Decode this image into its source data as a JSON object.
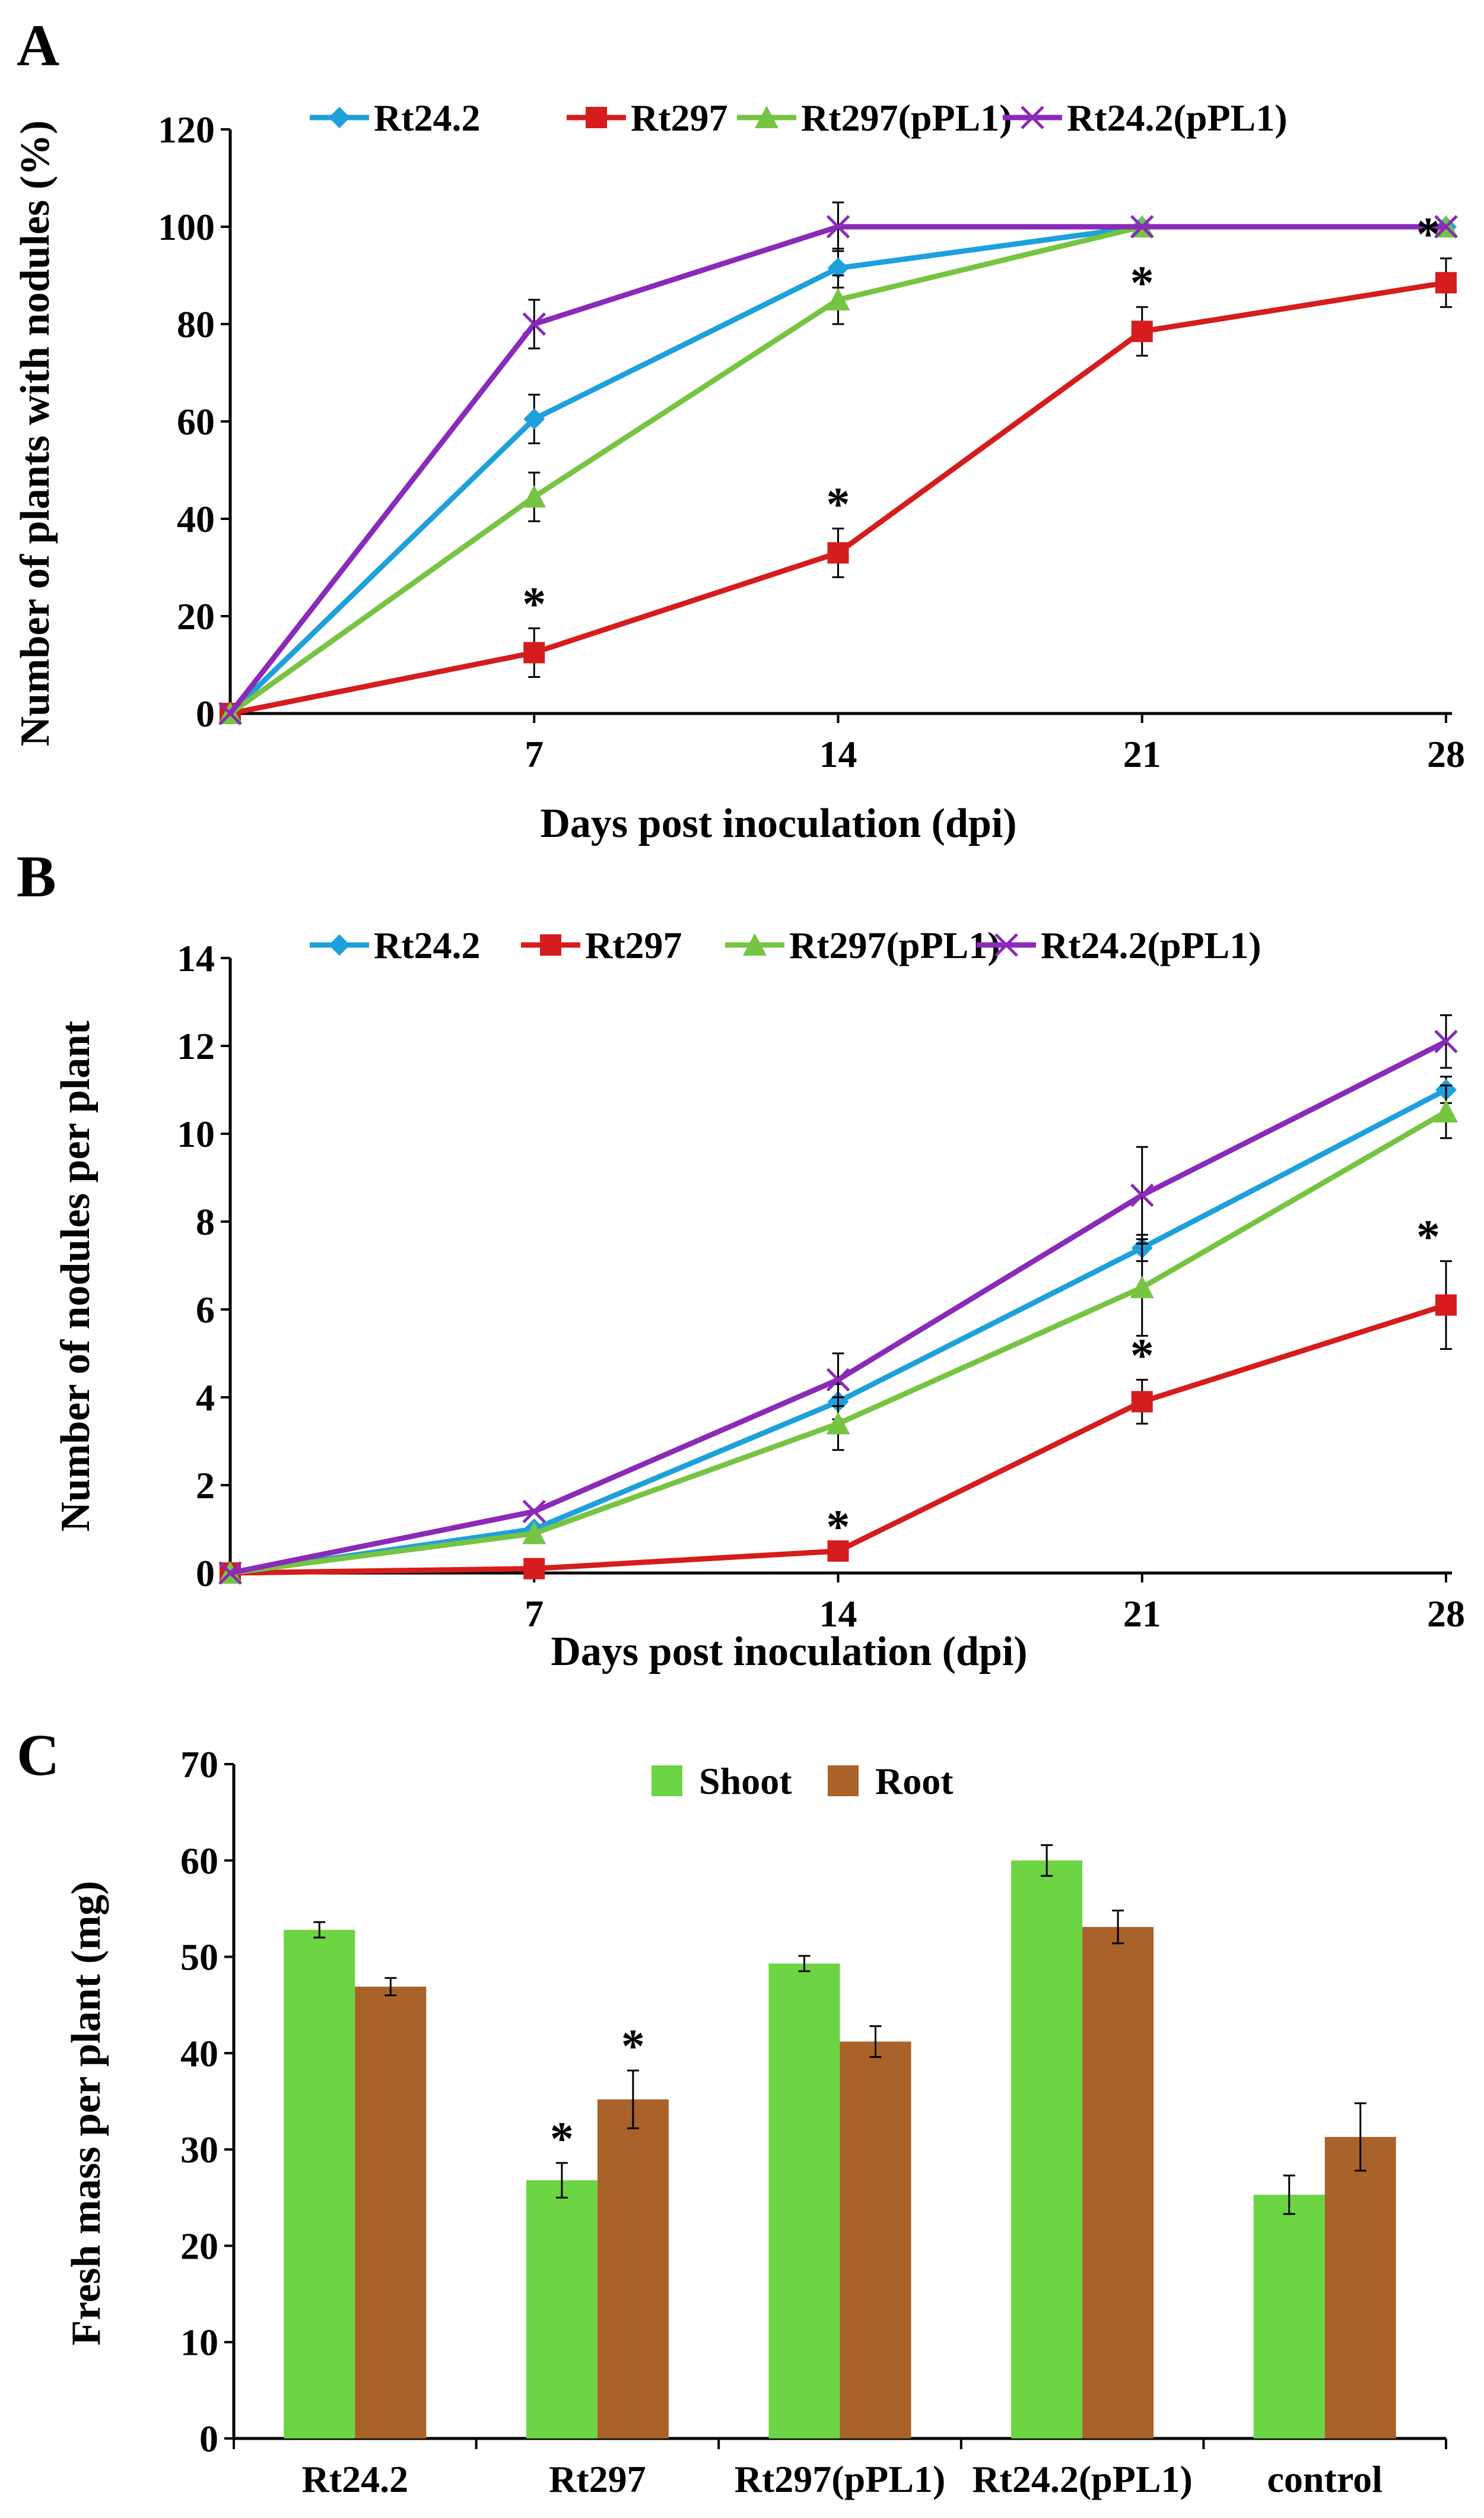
{
  "chart_data": [
    {
      "panel": "A",
      "type": "line",
      "xlabel": "Days post inoculation (dpi)",
      "ylabel": "Number of plants with nodules (%)",
      "x": [
        0,
        7,
        14,
        21,
        28
      ],
      "x_tick_labels": [
        "7",
        "14",
        "21",
        "28"
      ],
      "ylim": [
        0,
        120
      ],
      "y_ticks": [
        0,
        20,
        40,
        60,
        80,
        100,
        120
      ],
      "legend_position": "top",
      "series": [
        {
          "name": "Rt24.2",
          "color": "#1ea0dc",
          "marker": "diamond",
          "values": [
            0,
            60.5,
            91.5,
            100,
            100
          ],
          "errors": [
            0,
            5,
            4,
            0,
            0
          ]
        },
        {
          "name": "Rt297",
          "color": "#d61c1c",
          "marker": "square",
          "values": [
            0,
            12.5,
            33,
            78.5,
            88.5
          ],
          "errors": [
            0,
            5,
            5,
            5,
            5
          ]
        },
        {
          "name": "Rt297(pPL1)",
          "color": "#76c442",
          "marker": "triangle",
          "values": [
            0,
            44.5,
            85,
            100,
            100
          ],
          "errors": [
            0,
            5,
            5,
            0,
            0
          ]
        },
        {
          "name": "Rt24.2(pPL1)",
          "color": "#8a2ab8",
          "marker": "x",
          "values": [
            0,
            80,
            100,
            100,
            100
          ],
          "errors": [
            0,
            5,
            5,
            0,
            0
          ]
        }
      ],
      "significance": [
        {
          "series": "Rt297",
          "x": 7,
          "label": "*"
        },
        {
          "series": "Rt297",
          "x": 14,
          "label": "*"
        },
        {
          "series": "Rt297",
          "x": 21,
          "label": "*"
        },
        {
          "series": "Rt297",
          "x": 28,
          "label": "*"
        }
      ]
    },
    {
      "panel": "B",
      "type": "line",
      "xlabel": "Days post inoculation (dpi)",
      "ylabel": "Number of nodules per plant",
      "x": [
        0,
        7,
        14,
        21,
        28
      ],
      "x_tick_labels": [
        "7",
        "14",
        "21",
        "28"
      ],
      "ylim": [
        0,
        14
      ],
      "y_ticks": [
        0,
        2,
        4,
        6,
        8,
        10,
        12,
        14
      ],
      "legend_position": "top",
      "series": [
        {
          "name": "Rt24.2",
          "color": "#1ea0dc",
          "marker": "diamond",
          "values": [
            0,
            1.0,
            3.9,
            7.4,
            11.0
          ],
          "errors": [
            0,
            0,
            0.4,
            0.3,
            0.3
          ]
        },
        {
          "name": "Rt297",
          "color": "#d61c1c",
          "marker": "square",
          "values": [
            0,
            0.1,
            0.5,
            3.9,
            6.1
          ],
          "errors": [
            0,
            0,
            0,
            0.5,
            1.0
          ]
        },
        {
          "name": "Rt297(pPL1)",
          "color": "#76c442",
          "marker": "triangle",
          "values": [
            0,
            0.9,
            3.4,
            6.5,
            10.5
          ],
          "errors": [
            0,
            0,
            0.6,
            1.1,
            0.6
          ]
        },
        {
          "name": "Rt24.2(pPL1)",
          "color": "#8a2ab8",
          "marker": "x",
          "values": [
            0,
            1.4,
            4.4,
            8.6,
            12.1
          ],
          "errors": [
            0,
            0,
            0.6,
            1.1,
            0.6
          ]
        }
      ],
      "significance": [
        {
          "series": "Rt297",
          "x": 14,
          "label": "*"
        },
        {
          "series": "Rt297",
          "x": 21,
          "label": "*"
        },
        {
          "series": "Rt297",
          "x": 28,
          "label": "*"
        }
      ]
    },
    {
      "panel": "C",
      "type": "bar",
      "ylabel": "Fresh mass per plant (mg)",
      "xlabel": "",
      "categories": [
        "Rt24.2",
        "Rt297",
        "Rt297(pPL1)",
        "Rt24.2(pPL1)",
        "control"
      ],
      "ylim": [
        0,
        70
      ],
      "y_ticks": [
        0,
        10,
        20,
        30,
        40,
        50,
        60,
        70
      ],
      "legend_position": "top-center",
      "series": [
        {
          "name": "Shoot",
          "color": "#6dd444",
          "values": [
            52.8,
            26.8,
            49.3,
            60.0,
            25.3
          ],
          "errors": [
            0.8,
            1.8,
            0.8,
            1.6,
            2.0
          ]
        },
        {
          "name": "Root",
          "color": "#a8622a",
          "values": [
            46.9,
            35.2,
            41.2,
            53.1,
            31.3
          ],
          "errors": [
            0.9,
            3.0,
            1.6,
            1.7,
            3.5
          ]
        }
      ],
      "significance": [
        {
          "series": "Shoot",
          "category": "Rt297",
          "label": "*"
        },
        {
          "series": "Root",
          "category": "Rt297",
          "label": "*"
        }
      ]
    }
  ]
}
